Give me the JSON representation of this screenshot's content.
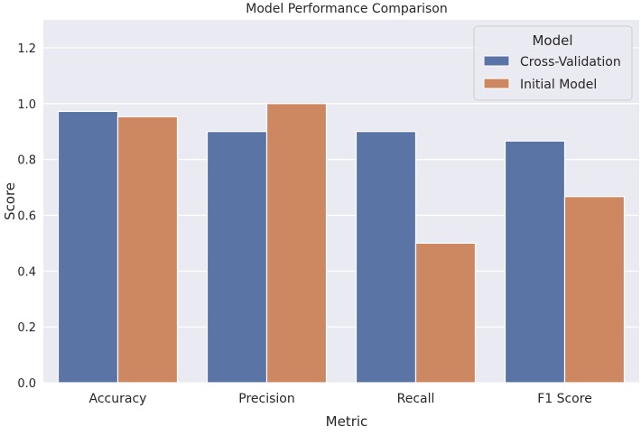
{
  "chart_data": {
    "type": "bar",
    "title": "Model Performance Comparison",
    "xlabel": "Metric",
    "ylabel": "Score",
    "categories": [
      "Accuracy",
      "Precision",
      "Recall",
      "F1 Score"
    ],
    "series": [
      {
        "name": "Cross-Validation",
        "values": [
          0.972,
          0.9,
          0.9,
          0.866
        ],
        "color": "#5a74a6"
      },
      {
        "name": "Initial Model",
        "values": [
          0.953,
          1.0,
          0.5,
          0.667
        ],
        "color": "#cd8862"
      }
    ],
    "ylim": [
      0,
      1.3
    ],
    "yticks": [
      "0.0",
      "0.2",
      "0.4",
      "0.6",
      "0.8",
      "1.0",
      "1.2"
    ],
    "grid": true,
    "legend": {
      "title": "Model",
      "placement": "top-right"
    },
    "background": "#eaeaf2"
  }
}
